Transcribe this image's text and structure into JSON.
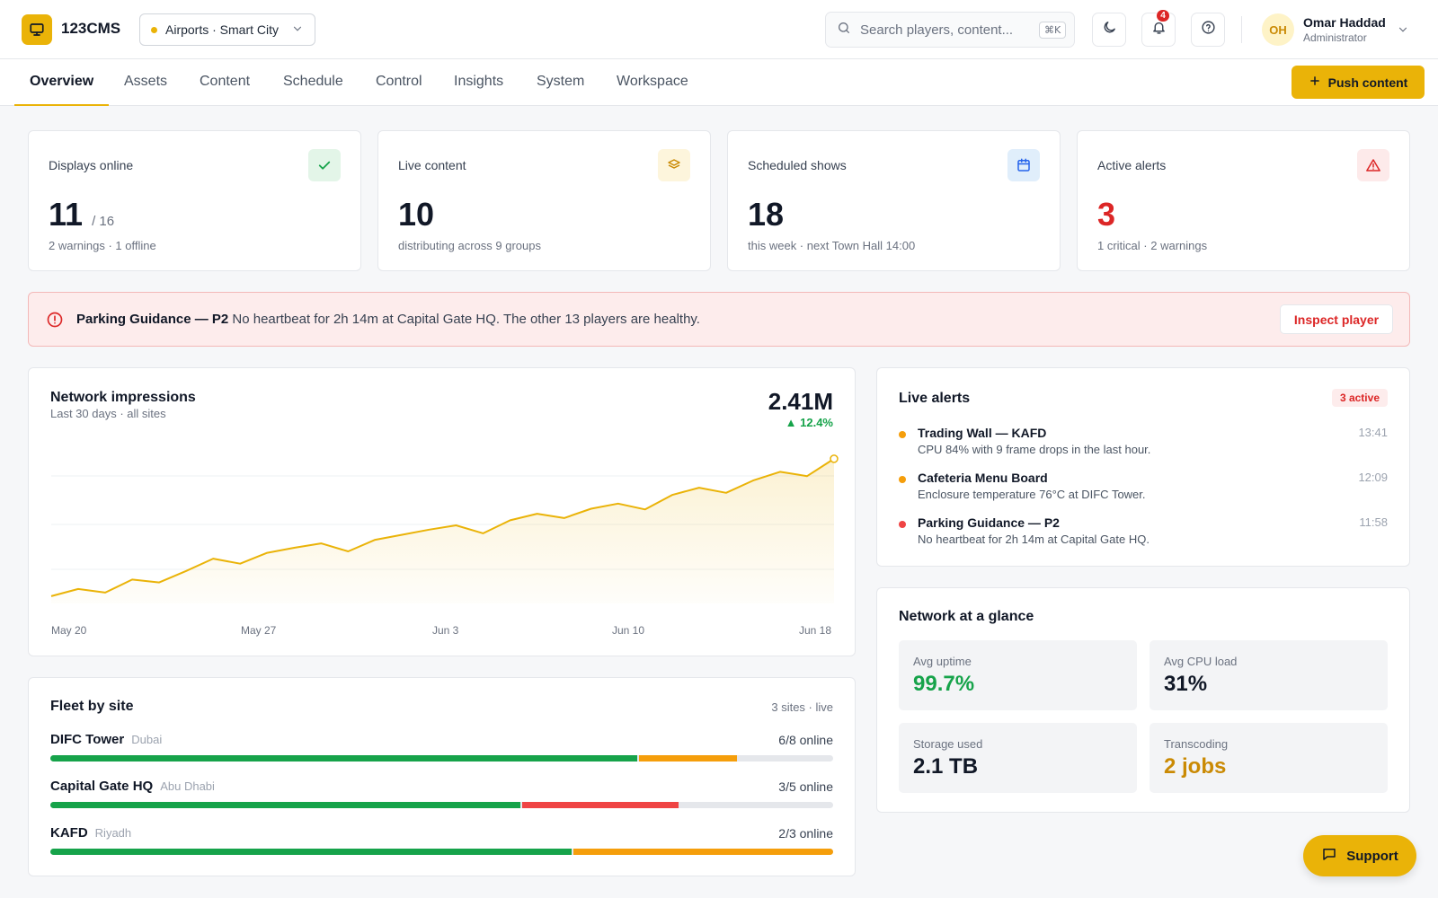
{
  "app": {
    "brand": "123CMS",
    "logo_icon": "monitor-icon",
    "accent": "#eab308"
  },
  "workspace": {
    "label": "Airports · Smart City"
  },
  "search": {
    "placeholder": "Search players, content...",
    "shortcut": "⌘K"
  },
  "header": {
    "notification_count": "4"
  },
  "user": {
    "initials": "OH",
    "name": "Omar Haddad",
    "role": "Administrator"
  },
  "tabs": [
    {
      "label": "Overview",
      "active": true
    },
    {
      "label": "Assets"
    },
    {
      "label": "Content"
    },
    {
      "label": "Schedule"
    },
    {
      "label": "Control"
    },
    {
      "label": "Insights"
    },
    {
      "label": "System"
    },
    {
      "label": "Workspace"
    }
  ],
  "push_button": {
    "label": "Push content"
  },
  "stats": [
    {
      "label": "Displays online",
      "value": "11",
      "sub": "/ 16",
      "caption": "2 warnings · 1 offline",
      "icon": "check-icon",
      "value_color": "#111827"
    },
    {
      "label": "Live content",
      "value": "10",
      "sub": "",
      "caption": "distributing across 9 groups",
      "icon": "layers-icon",
      "value_color": "#111827"
    },
    {
      "label": "Scheduled shows",
      "value": "18",
      "sub": "",
      "caption": "this week · next Town Hall 14:00",
      "icon": "calendar-icon",
      "value_color": "#111827"
    },
    {
      "label": "Active alerts",
      "value": "3",
      "sub": "",
      "caption": "1 critical · 2 warnings",
      "icon": "alert-triangle-icon",
      "value_color": "#dc2626"
    }
  ],
  "banner": {
    "title": "Parking Guidance — P2",
    "text": "No heartbeat for 2h 14m at Capital Gate HQ. The other 13 players are healthy.",
    "button": "Inspect player"
  },
  "impressions": {
    "title": "Network impressions",
    "subtitle": "Last 30 days · all sites",
    "total": "2.41M",
    "delta": "▲ 12.4%"
  },
  "chart_data": {
    "type": "area",
    "x_tick_labels": [
      "May 20",
      "May 27",
      "Jun 3",
      "Jun 10",
      "Jun 18"
    ],
    "values": [
      0.1,
      0.2,
      0.15,
      0.33,
      0.29,
      0.45,
      0.62,
      0.55,
      0.7,
      0.77,
      0.83,
      0.72,
      0.88,
      0.95,
      1.02,
      1.08,
      0.97,
      1.15,
      1.24,
      1.18,
      1.31,
      1.38,
      1.3,
      1.5,
      1.6,
      1.53,
      1.7,
      1.82,
      1.76,
      2.0
    ],
    "grid": true,
    "color": "#eab308"
  },
  "fleet": {
    "title": "Fleet by site",
    "meta": "3 sites · live",
    "sites": [
      {
        "name": "DIFC Tower",
        "city": "Dubai",
        "online": "6/8 online",
        "segments": [
          {
            "fraction": 0.75,
            "color": "#16a34a"
          },
          {
            "fraction": 0.125,
            "color": "#f59e0b"
          }
        ]
      },
      {
        "name": "Capital Gate HQ",
        "city": "Abu Dhabi",
        "online": "3/5 online",
        "segments": [
          {
            "fraction": 0.6,
            "color": "#16a34a"
          },
          {
            "fraction": 0.2,
            "color": "#ef4444"
          }
        ]
      },
      {
        "name": "KAFD",
        "city": "Riyadh",
        "online": "2/3 online",
        "segments": [
          {
            "fraction": 0.667,
            "color": "#16a34a"
          },
          {
            "fraction": 0.333,
            "color": "#f59e0b"
          }
        ]
      }
    ]
  },
  "alerts": {
    "title": "Live alerts",
    "badge": "3 active",
    "items": [
      {
        "title": "Trading Wall — KAFD",
        "desc": "CPU 84% with 9 frame drops in the last hour.",
        "time": "13:41",
        "color": "#f59e0b"
      },
      {
        "title": "Cafeteria Menu Board",
        "desc": "Enclosure temperature 76°C at DIFC Tower.",
        "time": "12:09",
        "color": "#f59e0b"
      },
      {
        "title": "Parking Guidance — P2",
        "desc": "No heartbeat for 2h 14m at Capital Gate HQ.",
        "time": "11:58",
        "color": "#ef4444"
      }
    ]
  },
  "glance": {
    "title": "Network at a glance",
    "tiles": [
      {
        "label": "Avg uptime",
        "value": "99.7%",
        "color": "#16a34a"
      },
      {
        "label": "Avg CPU load",
        "value": "31%",
        "color": "#111827"
      },
      {
        "label": "Storage used",
        "value": "2.1 TB",
        "color": "#111827"
      },
      {
        "label": "Transcoding",
        "value": "2 jobs",
        "color": "#ca8a04"
      }
    ]
  },
  "support": {
    "label": "Support"
  }
}
